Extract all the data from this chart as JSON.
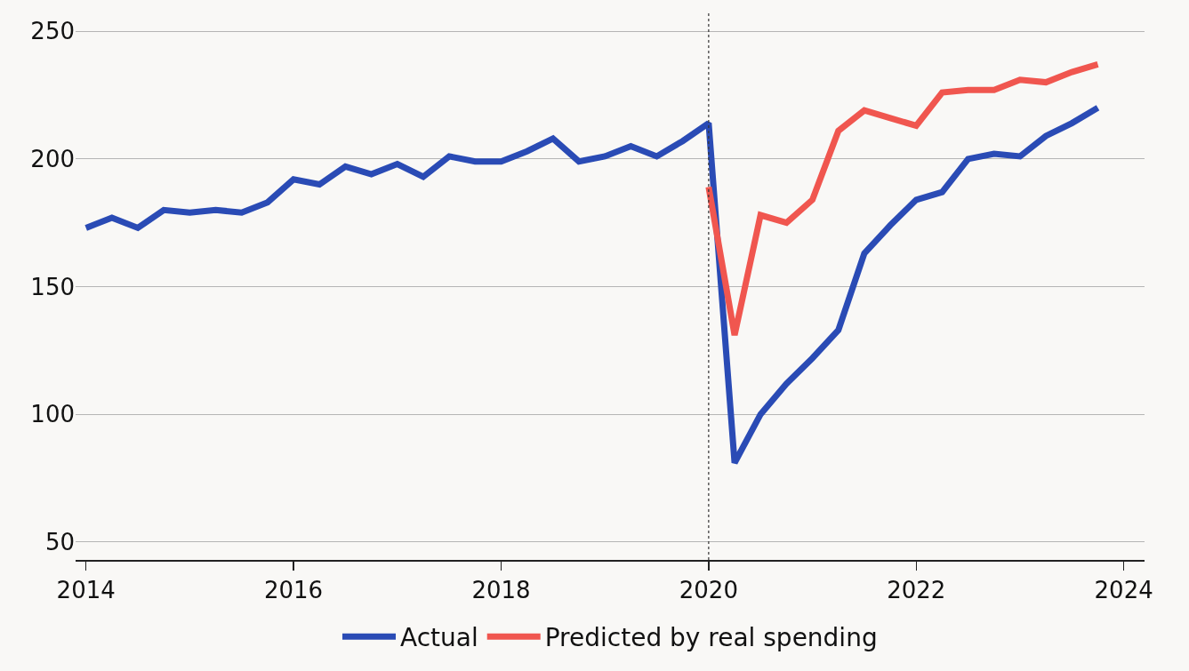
{
  "chart_data": {
    "type": "line",
    "x": [
      2014,
      2014.25,
      2014.5,
      2014.75,
      2015,
      2015.25,
      2015.5,
      2015.75,
      2016,
      2016.25,
      2016.5,
      2016.75,
      2017,
      2017.25,
      2017.5,
      2017.75,
      2018,
      2018.25,
      2018.5,
      2018.75,
      2019,
      2019.25,
      2019.5,
      2019.75,
      2020,
      2020.25,
      2020.5,
      2020.75,
      2021,
      2021.25,
      2021.5,
      2021.75,
      2022,
      2022.25,
      2022.5,
      2022.75,
      2023,
      2023.25,
      2023.5,
      2023.75
    ],
    "series": [
      {
        "name": "Actual",
        "color": "#2a4bb5",
        "values": [
          173,
          177,
          173,
          180,
          179,
          180,
          179,
          183,
          192,
          190,
          197,
          194,
          198,
          193,
          201,
          199,
          199,
          203,
          208,
          199,
          201,
          205,
          201,
          207,
          214,
          81,
          100,
          112,
          122,
          133,
          163,
          174,
          184,
          187,
          200,
          202,
          201,
          209,
          214,
          220
        ]
      },
      {
        "name": "Predicted by real spending",
        "color": "#f0564f",
        "x": [
          2020,
          2020.25,
          2020.5,
          2020.75,
          2021,
          2021.25,
          2021.5,
          2021.75,
          2022,
          2022.25,
          2022.5,
          2022.75,
          2023,
          2023.25,
          2023.5,
          2023.75
        ],
        "values": [
          189,
          131,
          178,
          175,
          184,
          211,
          219,
          216,
          213,
          226,
          227,
          227,
          231,
          230,
          234,
          237
        ]
      }
    ],
    "xlim": [
      2013.9,
      2024.2
    ],
    "xticks": [
      2014,
      2016,
      2018,
      2020,
      2022,
      2024
    ],
    "ylim": [
      43,
      257
    ],
    "yticks": [
      50,
      100,
      150,
      200,
      250
    ],
    "ref_lines": [
      {
        "axis": "x",
        "value": 2020,
        "color": "#333333",
        "line_style": "dotted"
      }
    ],
    "grid": "y",
    "legend": "bottom",
    "marker": "none",
    "line_style": "solid"
  }
}
